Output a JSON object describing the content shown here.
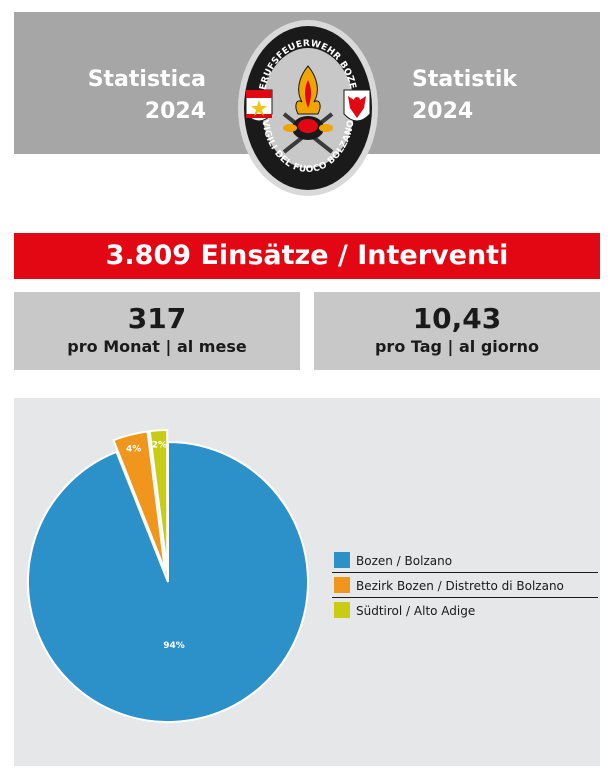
{
  "header": {
    "left_title": "Statistica",
    "left_year": "2024",
    "right_title": "Statistik",
    "right_year": "2024",
    "header_bg": "#a6a6a6",
    "logo": {
      "top_text": "BERUFSFEUERWEHR BOZEN",
      "bottom_text": "VIGILI DEL FUOCO BOLZANO",
      "ring_color": "#1a1a1a"
    }
  },
  "banner": {
    "text": "3.809 Einsätze / Interventi",
    "color": "#e30613"
  },
  "stats": [
    {
      "value": "317",
      "label": "pro Monat | al mese"
    },
    {
      "value": "10,43",
      "label": "pro Tag | al giorno"
    }
  ],
  "chart_data": {
    "type": "pie",
    "categories": [
      "Bozen / Bolzano",
      "Bezirk Bozen / Distretto di Bolzano",
      "Südtirol / Alto Adige"
    ],
    "values": [
      94,
      4,
      2
    ],
    "labels": [
      "94%",
      "4%",
      "2%"
    ],
    "colors": [
      "#2c90c9",
      "#f0961c",
      "#c8cc14"
    ],
    "exploded": [
      false,
      true,
      true
    ],
    "legend_position": "right"
  }
}
